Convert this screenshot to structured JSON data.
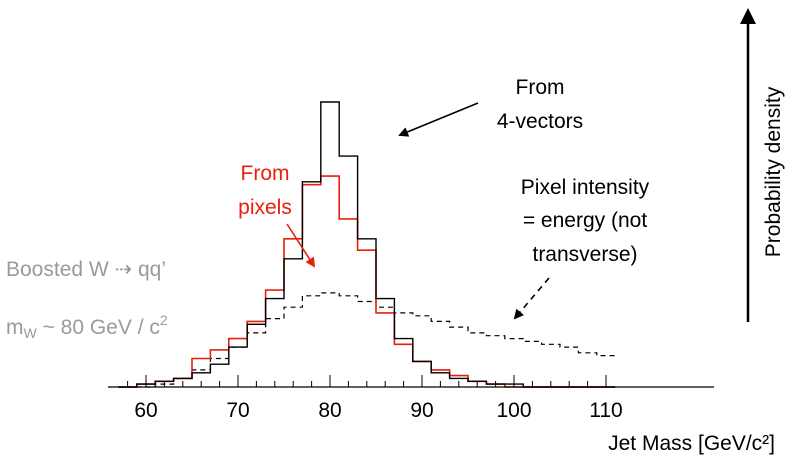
{
  "chart_data": {
    "type": "line",
    "title": "",
    "xlabel": "Jet Mass [GeV/c²]",
    "ylabel": "Probability density",
    "xlim": [
      57,
      112
    ],
    "ylim": [
      0,
      1.0
    ],
    "grid": false,
    "x_ticks": [
      60,
      70,
      80,
      90,
      100,
      110
    ],
    "tick_labels": [
      "60",
      "70",
      "80",
      "90",
      "100",
      "110"
    ],
    "bin_edges": [
      57,
      59,
      61,
      63,
      65,
      67,
      69,
      71,
      73,
      75,
      77,
      79,
      81,
      83,
      85,
      87,
      89,
      91,
      93,
      95,
      97,
      99,
      101,
      103,
      105,
      107,
      109,
      111
    ],
    "series": [
      {
        "name": "From 4-vectors",
        "color": "#000000",
        "style": "solid",
        "values": [
          0.0,
          0.01,
          0.02,
          0.03,
          0.05,
          0.08,
          0.14,
          0.22,
          0.31,
          0.45,
          0.72,
          1.0,
          0.81,
          0.52,
          0.31,
          0.17,
          0.09,
          0.05,
          0.03,
          0.02,
          0.01,
          0.01,
          0.0,
          0.0,
          0.0,
          0.0,
          0.0
        ]
      },
      {
        "name": "From pixels",
        "color": "#e8200a",
        "style": "solid",
        "values": [
          0.0,
          0.01,
          0.02,
          0.03,
          0.1,
          0.13,
          0.17,
          0.23,
          0.34,
          0.52,
          0.71,
          0.74,
          0.59,
          0.48,
          0.26,
          0.15,
          0.09,
          0.06,
          0.04,
          0.02,
          0.01,
          0.0,
          0.0,
          0.0,
          0.0,
          0.0,
          0.0
        ]
      },
      {
        "name": "Pixel intensity = energy (not transverse)",
        "color": "#000000",
        "style": "dashed",
        "values": [
          0.0,
          0.0,
          0.01,
          0.03,
          0.06,
          0.1,
          0.14,
          0.19,
          0.24,
          0.28,
          0.32,
          0.33,
          0.32,
          0.3,
          0.28,
          0.26,
          0.25,
          0.23,
          0.21,
          0.19,
          0.18,
          0.17,
          0.16,
          0.15,
          0.14,
          0.12,
          0.11
        ]
      }
    ],
    "annotations": {
      "four_vectors": [
        "From",
        "4-vectors"
      ],
      "pixels": [
        "From",
        "pixels"
      ],
      "pixel_intensity": [
        "Pixel intensity",
        "= energy (not",
        "transverse)"
      ],
      "boosted": "Boosted W ⇢ qq’",
      "mass_prefix": "m",
      "mass_sub": "W",
      "mass_suffix": " ~ 80 GeV / c",
      "mass_sup": "2"
    },
    "colors": {
      "red": "#e8200a",
      "black": "#000000",
      "gray": "#9a9a9a"
    }
  }
}
